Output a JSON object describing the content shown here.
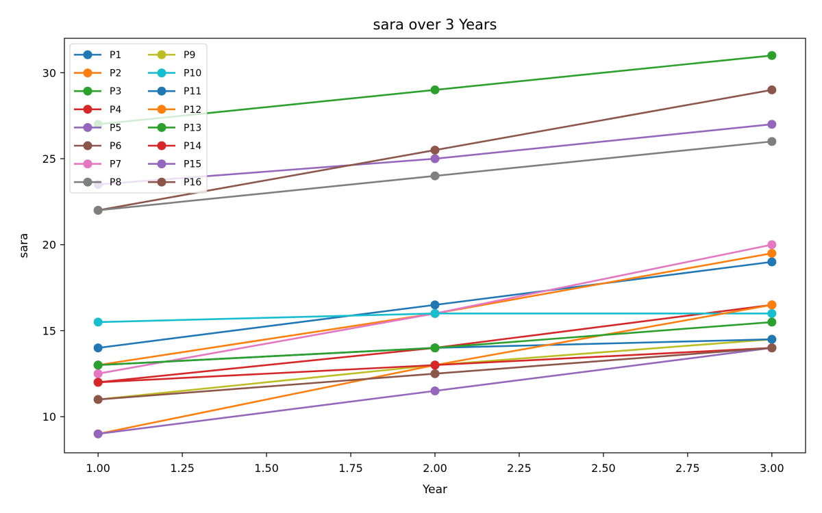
{
  "chart_data": {
    "type": "line",
    "title": "sara over 3 Years",
    "xlabel": "Year",
    "ylabel": "sara",
    "x": [
      1,
      2,
      3
    ],
    "xlim": [
      0.9,
      3.1
    ],
    "ylim": [
      7.9,
      32.0
    ],
    "xticks": [
      1.0,
      1.25,
      1.5,
      1.75,
      2.0,
      2.25,
      2.5,
      2.75,
      3.0
    ],
    "xtick_labels": [
      "1.00",
      "1.25",
      "1.50",
      "1.75",
      "2.00",
      "2.25",
      "2.50",
      "2.75",
      "3.00"
    ],
    "yticks": [
      10,
      15,
      20,
      25,
      30
    ],
    "ytick_labels": [
      "10",
      "15",
      "20",
      "25",
      "30"
    ],
    "grid": false,
    "legend": {
      "position": "top-left",
      "columns": 2
    },
    "series": [
      {
        "name": "P1",
        "color": "#1f77b4",
        "values": [
          14,
          16.5,
          19
        ]
      },
      {
        "name": "P2",
        "color": "#ff7f0e",
        "values": [
          13,
          16,
          19.5
        ]
      },
      {
        "name": "P3",
        "color": "#2ca02c",
        "values": [
          27,
          29,
          31
        ]
      },
      {
        "name": "P4",
        "color": "#d62728",
        "values": [
          12,
          14,
          16.5
        ]
      },
      {
        "name": "P5",
        "color": "#9467bd",
        "values": [
          23.5,
          25,
          27
        ]
      },
      {
        "name": "P6",
        "color": "#8c564b",
        "values": [
          22,
          25.5,
          29
        ]
      },
      {
        "name": "P7",
        "color": "#e377c2",
        "values": [
          12.5,
          16,
          20
        ]
      },
      {
        "name": "P8",
        "color": "#7f7f7f",
        "values": [
          22,
          24,
          26
        ]
      },
      {
        "name": "P9",
        "color": "#bcbd22",
        "values": [
          11,
          13,
          14.5
        ]
      },
      {
        "name": "P10",
        "color": "#17becf",
        "values": [
          15.5,
          16,
          16
        ]
      },
      {
        "name": "P11",
        "color": "#1f77b4",
        "values": [
          13,
          14,
          14.5
        ]
      },
      {
        "name": "P12",
        "color": "#ff7f0e",
        "values": [
          9,
          13,
          16.5
        ]
      },
      {
        "name": "P13",
        "color": "#2ca02c",
        "values": [
          13,
          14,
          15.5
        ]
      },
      {
        "name": "P14",
        "color": "#d62728",
        "values": [
          12,
          13,
          14
        ]
      },
      {
        "name": "P15",
        "color": "#9467bd",
        "values": [
          9,
          11.5,
          14
        ]
      },
      {
        "name": "P16",
        "color": "#8c564b",
        "values": [
          11,
          12.5,
          14
        ]
      }
    ]
  }
}
